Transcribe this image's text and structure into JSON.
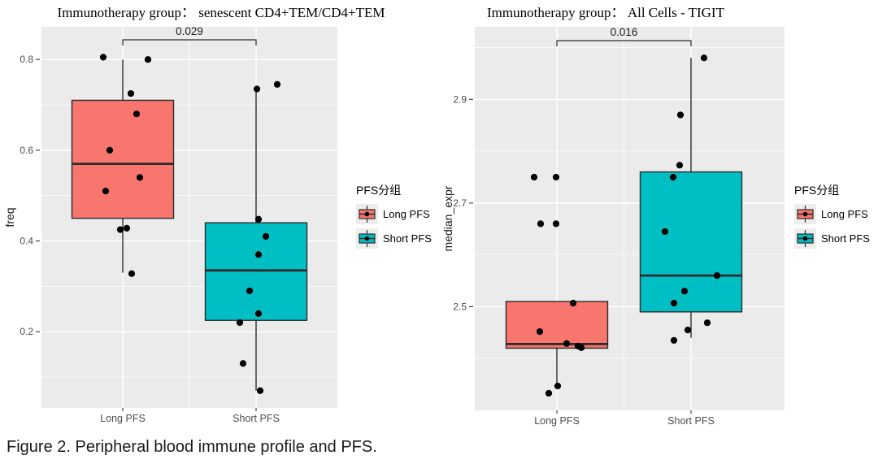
{
  "figure_caption": "Figure 2. Peripheral blood immune profile and PFS.",
  "legend": {
    "title": "PFS分组",
    "items": [
      {
        "label": "Long PFS",
        "color": "#F8766D"
      },
      {
        "label": "Short PFS",
        "color": "#00BFC4"
      }
    ]
  },
  "colors": {
    "panel_background": "#EBEBEB",
    "gridline": "#FFFFFF",
    "box_outline": "#2B2B2B",
    "jitter_point": "#000000",
    "long_pfs_fill": "#F8766D",
    "short_pfs_fill": "#00BFC4",
    "axis_tick_text": "#4D4D4D",
    "title_text": "#000000",
    "legend_key_background": "#EDEDED"
  },
  "chart_data": [
    {
      "type": "boxplot",
      "title": "Immunotherapy group： senescent CD4+TEM/CD4+TEM",
      "ylabel": "freq",
      "categories": [
        "Long PFS",
        "Short PFS"
      ],
      "significance_p_value": "0.029",
      "ylim": [
        0.032,
        0.872
      ],
      "yticks": [
        0.2,
        0.4,
        0.6,
        0.8
      ],
      "grid": true,
      "legend_position": "right",
      "series": [
        {
          "name": "Long PFS",
          "color": "#F8766D",
          "box": {
            "q1": 0.45,
            "median": 0.57,
            "q3": 0.71,
            "whisker_low": 0.33,
            "whisker_high": 0.8
          },
          "points": [
            [
              -24,
              0.805
            ],
            [
              31,
              0.8
            ],
            [
              10,
              0.725
            ],
            [
              17,
              0.68
            ],
            [
              -16,
              0.6
            ],
            [
              21,
              0.54
            ],
            [
              -21,
              0.51
            ],
            [
              5,
              0.428
            ],
            [
              -3,
              0.425
            ],
            [
              11,
              0.328
            ]
          ]
        },
        {
          "name": "Short PFS",
          "color": "#00BFC4",
          "box": {
            "q1": 0.225,
            "median": 0.335,
            "q3": 0.44,
            "whisker_low": 0.07,
            "whisker_high": 0.735
          },
          "points": [
            [
              26,
              0.745
            ],
            [
              1,
              0.735
            ],
            [
              3,
              0.448
            ],
            [
              12,
              0.41
            ],
            [
              3,
              0.37
            ],
            [
              -8,
              0.29
            ],
            [
              3,
              0.24
            ],
            [
              -20,
              0.22
            ],
            [
              -16,
              0.13
            ],
            [
              5,
              0.07
            ]
          ]
        }
      ]
    },
    {
      "type": "boxplot",
      "title": "Immunotherapy group： All Cells - TIGIT",
      "ylabel": "median_expr",
      "categories": [
        "Long PFS",
        "Short PFS"
      ],
      "significance_p_value": "0.016",
      "ylim": [
        2.3,
        3.04
      ],
      "yticks": [
        2.5,
        2.7,
        2.9
      ],
      "grid": true,
      "legend_position": "right",
      "series": [
        {
          "name": "Long PFS",
          "color": "#F8766D",
          "box": {
            "q1": 2.42,
            "median": 2.428,
            "q3": 2.51,
            "whisker_low": 2.345,
            "whisker_high": 2.51
          },
          "points": [
            [
              -28,
              2.75
            ],
            [
              -1,
              2.75
            ],
            [
              -20,
              2.66
            ],
            [
              -1,
              2.66
            ],
            [
              20,
              2.507
            ],
            [
              -21,
              2.452
            ],
            [
              12,
              2.429
            ],
            [
              26,
              2.424
            ],
            [
              30,
              2.421
            ],
            [
              1,
              2.347
            ],
            [
              -10,
              2.333
            ]
          ]
        },
        {
          "name": "Short PFS",
          "color": "#00BFC4",
          "box": {
            "q1": 2.49,
            "median": 2.56,
            "q3": 2.76,
            "whisker_low": 2.44,
            "whisker_high": 2.98
          },
          "points": [
            [
              16,
              2.98
            ],
            [
              -13,
              2.87
            ],
            [
              -14,
              2.773
            ],
            [
              -22,
              2.75
            ],
            [
              -32,
              2.645
            ],
            [
              32,
              2.56
            ],
            [
              -8,
              2.53
            ],
            [
              -21,
              2.507
            ],
            [
              20,
              2.469
            ],
            [
              -4,
              2.455
            ],
            [
              -21,
              2.435
            ]
          ]
        }
      ]
    }
  ]
}
